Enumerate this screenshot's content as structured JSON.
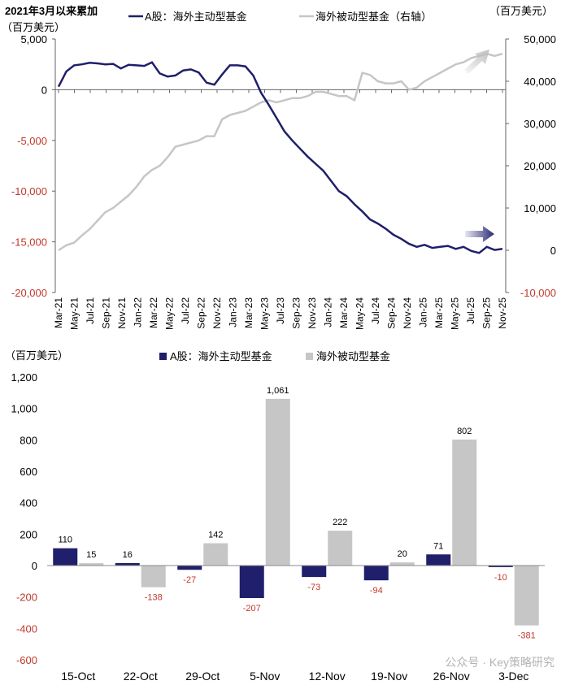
{
  "colors": {
    "navy": "#1f1f6b",
    "gray": "#c6c6c6",
    "red": "#c0392b",
    "axis": "#666666"
  },
  "chart_data": [
    {
      "type": "line",
      "title": "2021年3月以来累加",
      "left_unit": "（百万美元）",
      "right_unit": "（百万美元）",
      "left_ylim": [
        -20000,
        5000
      ],
      "right_ylim": [
        -10000,
        50000
      ],
      "left_ticks": [
        "5,000",
        "0",
        "-5,000",
        "-10,000",
        "-15,000",
        "-20,000"
      ],
      "left_tick_values": [
        5000,
        0,
        -5000,
        -10000,
        -15000,
        -20000
      ],
      "right_ticks": [
        "50,000",
        "40,000",
        "30,000",
        "20,000",
        "10,000",
        "0",
        "-10,000"
      ],
      "right_tick_values": [
        50000,
        40000,
        30000,
        20000,
        10000,
        0,
        -10000
      ],
      "x_ticks": [
        "Mar-21",
        "May-21",
        "Jul-21",
        "Sep-21",
        "Nov-21",
        "Jan-22",
        "Mar-22",
        "May-22",
        "Jul-22",
        "Sep-22",
        "Nov-22",
        "Jan-23",
        "Mar-23",
        "May-23",
        "Jul-23",
        "Sep-23",
        "Nov-23",
        "Jan-24",
        "Mar-24",
        "May-24",
        "Jul-24",
        "Sep-24",
        "Nov-24",
        "Jan-25",
        "Mar-25",
        "May-25",
        "Jul-25",
        "Sep-25",
        "Nov-25"
      ],
      "x_range": [
        0,
        57
      ],
      "series": [
        {
          "name": "A股：海外主动型基金",
          "axis": "left",
          "x": [
            0,
            1,
            2,
            3,
            4,
            5,
            6,
            7,
            8,
            9,
            10,
            11,
            12,
            13,
            14,
            15,
            16,
            17,
            18,
            19,
            20,
            21,
            22,
            23,
            24,
            25,
            26,
            27,
            28,
            29,
            30,
            31,
            32,
            33,
            34,
            35,
            36,
            37,
            38,
            39,
            40,
            41,
            42,
            43,
            44,
            45,
            46,
            47,
            48,
            49,
            50,
            51,
            52,
            53,
            54,
            55,
            56,
            57
          ],
          "values": [
            300,
            1800,
            2400,
            2500,
            2650,
            2600,
            2500,
            2550,
            2100,
            2450,
            2400,
            2350,
            2700,
            1600,
            1300,
            1400,
            1900,
            2000,
            1700,
            700,
            500,
            1500,
            2400,
            2400,
            2300,
            1400,
            -300,
            -1500,
            -2800,
            -4100,
            -5000,
            -5800,
            -6600,
            -7300,
            -8000,
            -9000,
            -10000,
            -10500,
            -11300,
            -12000,
            -12800,
            -13200,
            -13700,
            -14300,
            -14700,
            -15200,
            -15500,
            -15300,
            -15600,
            -15500,
            -15400,
            -15700,
            -15500,
            -15900,
            -16100,
            -15500,
            -15800,
            -15700
          ]
        },
        {
          "name": "海外被动型基金（右轴）",
          "axis": "right",
          "x": [
            0,
            1,
            2,
            3,
            4,
            5,
            6,
            7,
            8,
            9,
            10,
            11,
            12,
            13,
            14,
            15,
            16,
            17,
            18,
            19,
            20,
            21,
            22,
            23,
            24,
            25,
            26,
            27,
            28,
            29,
            30,
            31,
            32,
            33,
            34,
            35,
            36,
            37,
            38,
            39,
            40,
            41,
            42,
            43,
            44,
            45,
            46,
            47,
            48,
            49,
            50,
            51,
            52,
            53,
            54,
            55,
            56,
            57
          ],
          "values": [
            0,
            1200,
            1800,
            3500,
            5000,
            7000,
            9000,
            10000,
            11500,
            13000,
            15000,
            17500,
            19000,
            20000,
            22000,
            24500,
            25000,
            25500,
            26000,
            27000,
            27000,
            31000,
            32000,
            32500,
            33000,
            34000,
            35000,
            35500,
            35000,
            35500,
            36000,
            36000,
            36500,
            37500,
            37500,
            37000,
            36500,
            36500,
            35500,
            42000,
            41500,
            40000,
            39500,
            39500,
            40000,
            38000,
            38500,
            40000,
            41000,
            42000,
            43000,
            44000,
            44500,
            45500,
            46000,
            46500,
            46000,
            46500
          ]
        }
      ]
    },
    {
      "type": "bar",
      "unit": "（百万美元）",
      "ylim": [
        -600,
        1200
      ],
      "y_ticks": [
        "1,200",
        "1,000",
        "800",
        "600",
        "400",
        "200",
        "0",
        "-200",
        "-400",
        "-600"
      ],
      "y_tick_values": [
        1200,
        1000,
        800,
        600,
        400,
        200,
        0,
        -200,
        -400,
        -600
      ],
      "categories": [
        "15-Oct",
        "22-Oct",
        "29-Oct",
        "5-Nov",
        "12-Nov",
        "19-Nov",
        "26-Nov",
        "3-Dec"
      ],
      "series": [
        {
          "name": "A股：海外主动型基金",
          "values": [
            110,
            16,
            -27,
            -207,
            -73,
            -94,
            71,
            -10
          ],
          "labels": [
            "110",
            "16",
            "-27",
            "-207",
            "-73",
            "-94",
            "71",
            "-10"
          ]
        },
        {
          "name": "海外被动型基金",
          "values": [
            15,
            -138,
            142,
            1061,
            222,
            20,
            802,
            -381
          ],
          "labels": [
            "15",
            "-138",
            "142",
            "1,061",
            "222",
            "20",
            "802",
            "-381"
          ]
        }
      ]
    }
  ],
  "watermark": "公众号 · Key策略研究"
}
